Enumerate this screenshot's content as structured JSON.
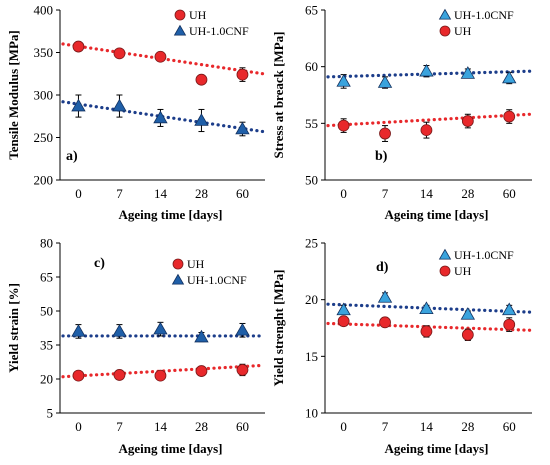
{
  "chart_data": [
    {
      "type": "scatter",
      "panel_label": "a)",
      "xlabel": "Ageing time [days]",
      "ylabel": "Tensile Modulus [MPa]",
      "categories": [
        "0",
        "7",
        "14",
        "28",
        "60"
      ],
      "ylim": [
        200,
        400
      ],
      "yticks": [
        "200",
        "250",
        "300",
        "350",
        "400"
      ],
      "legend_position": "top-right",
      "series": [
        {
          "name": "UH",
          "marker": "circle",
          "color": "#e8282b",
          "trend_color": "#e8282b",
          "values": [
            357,
            349,
            345,
            318,
            324
          ],
          "errors": [
            3,
            4,
            4,
            4,
            8
          ],
          "trend": [
            360,
            325
          ]
        },
        {
          "name": "UH-1.0CNF",
          "marker": "triangle",
          "color": "#1f5fa8",
          "trend_color": "#1c3d8a",
          "values": [
            287,
            287,
            273,
            270,
            260
          ],
          "errors": [
            13,
            13,
            10,
            13,
            8
          ],
          "trend": [
            292,
            257
          ]
        }
      ]
    },
    {
      "type": "scatter",
      "panel_label": "b)",
      "xlabel": "Ageing time [days]",
      "ylabel": "Stress at breack [MPa]",
      "categories": [
        "0",
        "7",
        "14",
        "28",
        "60"
      ],
      "ylim": [
        50,
        65
      ],
      "yticks": [
        "50",
        "55",
        "60",
        "65"
      ],
      "legend_position": "top-right",
      "series": [
        {
          "name": "UH-1.0CNF",
          "marker": "triangle",
          "color": "#3aa3dd",
          "trend_color": "#1c3d8a",
          "values": [
            58.7,
            58.6,
            59.6,
            59.4,
            59.0
          ],
          "errors": [
            0.6,
            0.5,
            0.5,
            0.4,
            0.5
          ],
          "trend": [
            59.1,
            59.6
          ]
        },
        {
          "name": "UH",
          "marker": "circle",
          "color": "#e8282b",
          "trend_color": "#e8282b",
          "values": [
            54.8,
            54.1,
            54.4,
            55.2,
            55.6
          ],
          "errors": [
            0.6,
            0.7,
            0.7,
            0.6,
            0.6
          ],
          "trend": [
            54.8,
            55.8
          ]
        }
      ]
    },
    {
      "type": "scatter",
      "panel_label": "c)",
      "xlabel": "Ageing time [days]",
      "ylabel": "Yield strain [%]",
      "categories": [
        "0",
        "7",
        "14",
        "28",
        "60"
      ],
      "ylim": [
        5,
        80
      ],
      "yticks": [
        "5",
        "20",
        "35",
        "50",
        "65",
        "80"
      ],
      "legend_position": "top-right",
      "series": [
        {
          "name": "UH",
          "marker": "circle",
          "color": "#e8282b",
          "trend_color": "#e8282b",
          "values": [
            21.5,
            21.8,
            21.5,
            23.5,
            24.0
          ],
          "errors": [
            1.0,
            1.0,
            1.0,
            1.2,
            2.5
          ],
          "trend": [
            21.0,
            26.0
          ]
        },
        {
          "name": "UH-1.0CNF",
          "marker": "triangle",
          "color": "#1f5fa8",
          "trend_color": "#1c3d8a",
          "values": [
            41.0,
            41.0,
            42.0,
            38.5,
            41.5
          ],
          "errors": [
            3.0,
            3.0,
            3.0,
            2.0,
            3.0
          ],
          "trend": [
            39.0,
            39.0
          ]
        }
      ]
    },
    {
      "type": "scatter",
      "panel_label": "d)",
      "xlabel": "Ageing time [days]",
      "ylabel": "Yield strenght [MPa]",
      "categories": [
        "0",
        "7",
        "14",
        "28",
        "60"
      ],
      "ylim": [
        10,
        25
      ],
      "yticks": [
        "10",
        "15",
        "20",
        "25"
      ],
      "legend_position": "top-right",
      "series": [
        {
          "name": "UH-1.0CNF",
          "marker": "triangle",
          "color": "#3aa3dd",
          "trend_color": "#1c3d8a",
          "values": [
            19.1,
            20.2,
            19.2,
            18.7,
            19.1
          ],
          "errors": [
            0.4,
            0.4,
            0.3,
            0.3,
            0.4
          ],
          "trend": [
            19.6,
            18.9
          ]
        },
        {
          "name": "UH",
          "marker": "circle",
          "color": "#e8282b",
          "trend_color": "#e8282b",
          "values": [
            18.1,
            18.0,
            17.2,
            16.9,
            17.8
          ],
          "errors": [
            0.4,
            0.4,
            0.5,
            0.5,
            0.6
          ],
          "trend": [
            17.9,
            17.3
          ]
        }
      ]
    }
  ]
}
